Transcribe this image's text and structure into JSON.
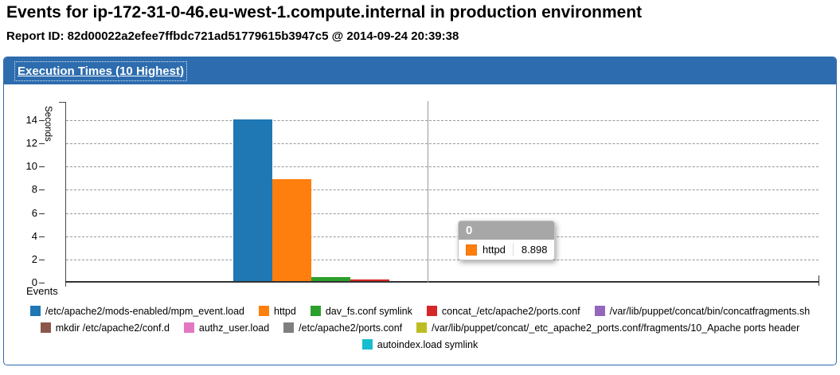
{
  "page": {
    "title": "Events for ip-172-31-0-46.eu-west-1.compute.internal in production environment",
    "report_line": "Report ID: 82d00022a2efee7ffbdc721ad51779615b3947c5 @ 2014-09-24 20:39:38"
  },
  "panel": {
    "heading": "Execution Times (10 Highest)"
  },
  "chart_data": {
    "type": "bar",
    "title": "Execution Times (10 Highest)",
    "xlabel": "Events",
    "ylabel": "Seconds",
    "x_category": "0",
    "ylim": [
      0,
      14.5
    ],
    "yticks": [
      0,
      2,
      4,
      6,
      8,
      10,
      12,
      14
    ],
    "grid": "horizontal-dashed",
    "legend_position": "bottom",
    "series": [
      {
        "name": "/etc/apache2/mods-enabled/mpm_event.load",
        "value": 14.07,
        "color": "#1f77b4"
      },
      {
        "name": "httpd",
        "value": 8.898,
        "color": "#ff7f0e"
      },
      {
        "name": "dav_fs.conf symlink",
        "value": 0.48,
        "color": "#2ca02c"
      },
      {
        "name": "concat_/etc/apache2/ports.conf",
        "value": 0.28,
        "color": "#d62728"
      },
      {
        "name": "/var/lib/puppet/concat/bin/concatfragments.sh",
        "value": 0.16,
        "color": "#9467bd"
      },
      {
        "name": "mkdir /etc/apache2/conf.d",
        "value": 0.08,
        "color": "#8c564b"
      },
      {
        "name": "authz_user.load",
        "value": 0.12,
        "color": "#e377c2"
      },
      {
        "name": "/etc/apache2/ports.conf",
        "value": 0.13,
        "color": "#7f7f7f"
      },
      {
        "name": "/var/lib/puppet/concat/_etc_apache2_ports.conf/fragments/10_Apache ports header",
        "value": 0.12,
        "color": "#bcbd22"
      },
      {
        "name": "autoindex.load symlink",
        "value": 0.14,
        "color": "#17becf"
      }
    ],
    "legend_rows": [
      [
        0,
        1,
        2,
        3,
        4
      ],
      [
        5,
        6,
        7,
        8
      ],
      [
        9
      ]
    ],
    "tooltip": {
      "header": "0",
      "series": "httpd",
      "value": "8.898",
      "color": "#ff7f0e"
    }
  }
}
